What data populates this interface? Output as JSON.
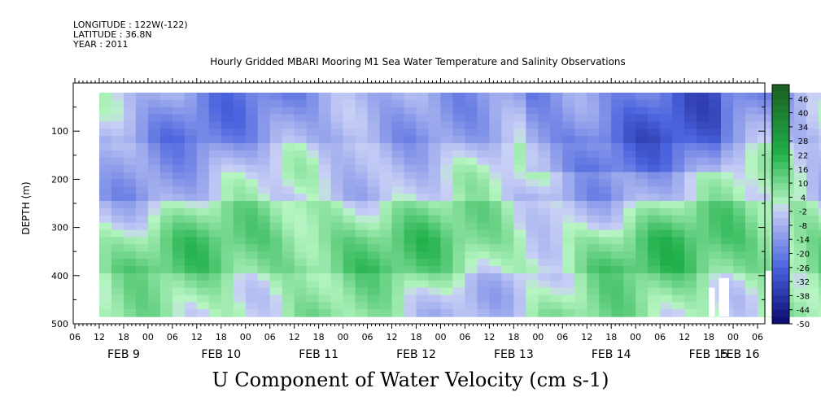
{
  "header": {
    "longitude": "LONGITUDE : 122W(-122)",
    "latitude": "LATITUDE : 36.8N",
    "year": "YEAR : 2011"
  },
  "title": "Hourly Gridded MBARI Mooring M1 Sea Water Temperature and Salinity Observations",
  "bottom_title": "U Component of Water Velocity (cm s-1)",
  "chart_data": {
    "type": "heatmap",
    "title": "Hourly Gridded MBARI Mooring M1 Sea Water Temperature and Salinity Observations",
    "variable": "U Component of Water Velocity (cm s-1)",
    "xlabel": "",
    "ylabel": "DEPTH (m)",
    "ylim": [
      500,
      0
    ],
    "y_ticks": [
      100,
      200,
      300,
      400,
      500
    ],
    "x_hour_ticks": [
      "06",
      "12",
      "18",
      "00",
      "06",
      "12",
      "18",
      "00",
      "06",
      "12",
      "18",
      "00",
      "06",
      "12",
      "18",
      "00",
      "06",
      "12",
      "18",
      "00",
      "06",
      "12",
      "18",
      "00",
      "06",
      "12",
      "18",
      "00",
      "06"
    ],
    "x_day_labels": [
      "FEB  9",
      "FEB 10",
      "FEB 11",
      "FEB 12",
      "FEB 13",
      "FEB 14",
      "FEB 15",
      "FEB 16"
    ],
    "data_extent": {
      "start": "2011-02-08 12:00",
      "end": "2011-02-16 07:00",
      "depth_top": 20,
      "depth_bottom": 485
    },
    "colorbar": {
      "labels": [
        "46",
        "40",
        "34",
        "28",
        "22",
        "16",
        "10",
        "4",
        "-2",
        "-8",
        "-14",
        "-20",
        "-26",
        "-32",
        "-38",
        "-44",
        "-50"
      ],
      "range": [
        -50,
        52
      ],
      "step": 3
    },
    "colors": {
      "positive_strong": "#1b5e20",
      "positive": "#22b14c",
      "positive_light": "#b6f5c2",
      "negative_light": "#c9d0f5",
      "negative": "#4a63de",
      "negative_strong": "#0a0a6e"
    },
    "pattern_summary": {
      "depth_bands": [
        {
          "depth_range": [
            20,
            120
          ],
          "mean_u": -12
        },
        {
          "depth_range": [
            120,
            250
          ],
          "mean_u": -4
        },
        {
          "depth_range": [
            250,
            400
          ],
          "mean_u": 10
        },
        {
          "depth_range": [
            400,
            485
          ],
          "mean_u": 2
        }
      ]
    }
  }
}
